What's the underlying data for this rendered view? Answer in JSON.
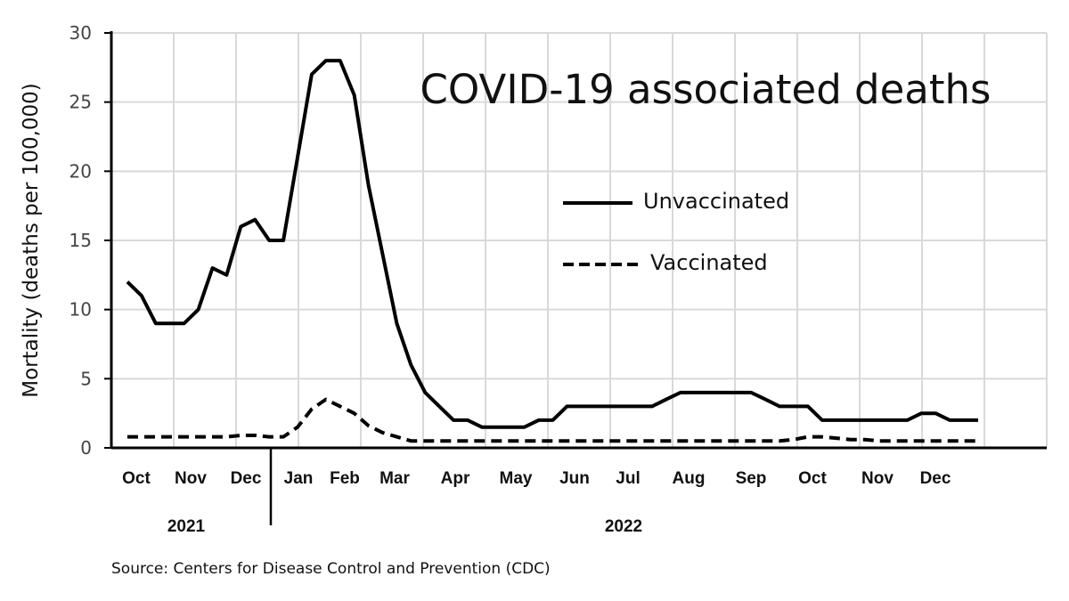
{
  "chart_data": {
    "type": "line",
    "title": "COVID-19 associated deaths",
    "ylabel": "Mortality (deaths per 100,000)",
    "xlabel": "",
    "ylim": [
      0,
      30
    ],
    "yticks": [
      0,
      5,
      10,
      15,
      20,
      25,
      30
    ],
    "grid": true,
    "legend_position": "right-middle",
    "month_labels": [
      "Oct",
      "Nov",
      "Dec",
      "Jan",
      "Feb",
      "Mar",
      "Apr",
      "May",
      "Jun",
      "Jul",
      "Aug",
      "Sep",
      "Oct",
      "Nov",
      "Dec"
    ],
    "year_labels": [
      "2021",
      "2022"
    ],
    "source": "Source: Centers for Disease Control and Prevention (CDC)",
    "series": [
      {
        "name": "Unvaccinated",
        "style": "solid",
        "color": "#000000",
        "values": [
          12,
          11,
          9,
          9,
          9,
          10,
          13,
          12.5,
          16,
          16.5,
          15,
          15,
          21,
          27,
          28,
          28,
          25.5,
          19,
          14,
          9,
          6,
          4,
          3,
          2,
          2,
          1.5,
          1.5,
          1.5,
          1.5,
          2,
          2,
          3,
          3,
          3,
          3,
          3,
          3,
          3,
          3.5,
          4,
          4,
          4,
          4,
          4,
          4,
          3.5,
          3,
          3,
          3,
          2,
          2,
          2,
          2,
          2,
          2,
          2,
          2.5,
          2.5,
          2,
          2,
          2
        ]
      },
      {
        "name": "Vaccinated",
        "style": "dashed",
        "color": "#000000",
        "values": [
          0.8,
          0.8,
          0.8,
          0.8,
          0.8,
          0.8,
          0.8,
          0.8,
          0.9,
          0.9,
          0.8,
          0.8,
          1.5,
          2.8,
          3.5,
          3,
          2.5,
          1.6,
          1.1,
          0.8,
          0.5,
          0.5,
          0.5,
          0.5,
          0.5,
          0.5,
          0.5,
          0.5,
          0.5,
          0.5,
          0.5,
          0.5,
          0.5,
          0.5,
          0.5,
          0.5,
          0.5,
          0.5,
          0.5,
          0.5,
          0.5,
          0.5,
          0.5,
          0.5,
          0.5,
          0.5,
          0.5,
          0.6,
          0.8,
          0.8,
          0.7,
          0.6,
          0.6,
          0.5,
          0.5,
          0.5,
          0.5,
          0.5,
          0.5,
          0.5,
          0.5
        ]
      }
    ]
  }
}
